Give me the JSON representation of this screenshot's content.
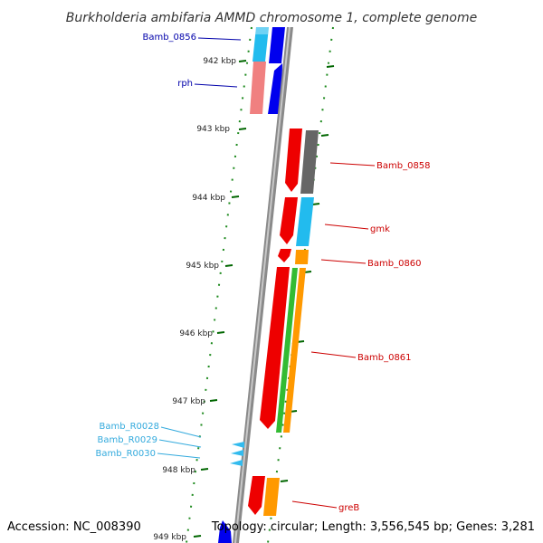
{
  "title": "Burkholderia ambifaria AMMD chromosome 1, complete genome",
  "accession": "Accession: NC_008390",
  "topology": "Topology: circular; Length: 3,556,545 bp; Genes: 3,281",
  "ruler": [
    "942 kbp",
    "943 kbp",
    "944 kbp",
    "945 kbp",
    "946 kbp",
    "947 kbp",
    "948 kbp",
    "949 kbp"
  ],
  "gene_labels": [
    {
      "name": "Bamb_0856",
      "strand": "reverse",
      "color": "#0000aa"
    },
    {
      "name": "rph",
      "strand": "reverse",
      "color": "#0000aa"
    },
    {
      "name": "Bamb_0858",
      "strand": "forward",
      "color": "#cc0000"
    },
    {
      "name": "gmk",
      "strand": "forward",
      "color": "#cc0000"
    },
    {
      "name": "Bamb_0860",
      "strand": "forward",
      "color": "#cc0000"
    },
    {
      "name": "Bamb_0861",
      "strand": "forward",
      "color": "#cc0000"
    },
    {
      "name": "greB",
      "strand": "forward",
      "color": "#cc0000"
    },
    {
      "name": "Bamb_R0028",
      "strand": "reverse",
      "color": "#33aadd"
    },
    {
      "name": "Bamb_R0029",
      "strand": "reverse",
      "color": "#33aadd"
    },
    {
      "name": "Bamb_R0030",
      "strand": "reverse",
      "color": "#33aadd"
    }
  ],
  "colors": {
    "forward_cds": "#ee0000",
    "reverse_cds": "#0000ee",
    "rna": "#33bbee",
    "cog_light_blue": "#22bbee",
    "cog_pink": "#f08080",
    "cog_gray": "#666666",
    "cog_orange": "#ff9900",
    "cog_green": "#33bb33",
    "backbone": "#888888",
    "ruler_tick": "#006600"
  }
}
